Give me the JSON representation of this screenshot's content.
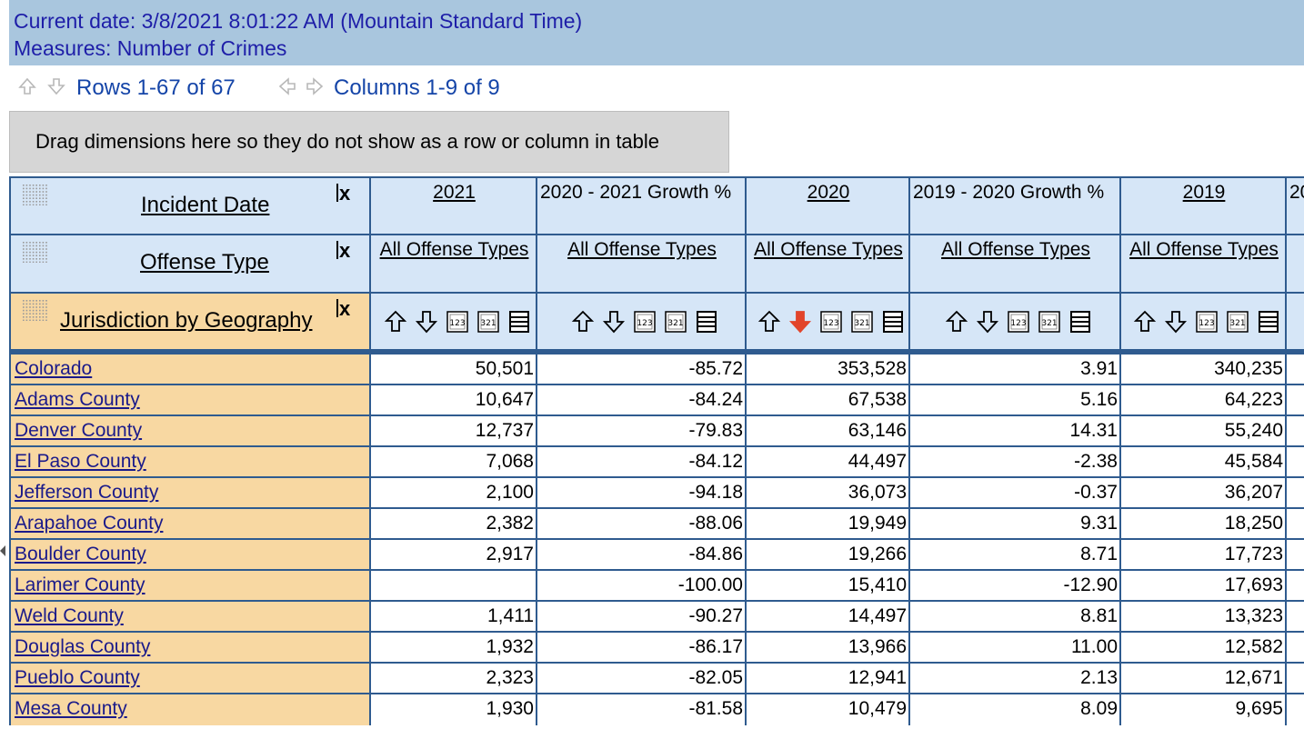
{
  "header": {
    "current_date": "Current date: 3/8/2021 8:01:22 AM (Mountain Standard Time)",
    "measures": "Measures: Number of Crimes"
  },
  "nav": {
    "rows_text": "Rows 1-67 of 67",
    "columns_text": "Columns 1-9 of 9",
    "icons": [
      "arrow-up-icon",
      "arrow-down-icon",
      "arrow-left-icon",
      "arrow-right-icon"
    ]
  },
  "drag_zone": {
    "text": "Drag dimensions here so they do not show as a row or column in table"
  },
  "dimensions": {
    "incident_date": "Incident Date",
    "offense_type": "Offense Type",
    "jurisdiction": "Jurisdiction by Geography",
    "remove_label": "x"
  },
  "columns": [
    {
      "header": "2021",
      "offense": "All Offense Types",
      "kind": "year"
    },
    {
      "header": "2020 - 2021 Growth %",
      "offense": "All Offense Types",
      "kind": "growth"
    },
    {
      "header": "2020",
      "offense": "All Offense Types",
      "kind": "year"
    },
    {
      "header": "2019 - 2020 Growth %",
      "offense": "All Offense Types",
      "kind": "growth"
    },
    {
      "header": "2019",
      "offense": "All Offense Types",
      "kind": "year"
    },
    {
      "header": "20",
      "offense": "",
      "kind": "year"
    }
  ],
  "sort_icons": [
    "sort-ascending-icon",
    "sort-descending-icon",
    "rank-ascending-icon",
    "rank-descending-icon",
    "list-icon"
  ],
  "active_sort_color": "#e2442a",
  "rows": [
    {
      "name": "Colorado",
      "values": [
        "50,501",
        "-85.72",
        "353,528",
        "3.91",
        "340,235"
      ]
    },
    {
      "name": "Adams County",
      "values": [
        "10,647",
        "-84.24",
        "67,538",
        "5.16",
        "64,223"
      ]
    },
    {
      "name": "Denver County",
      "values": [
        "12,737",
        "-79.83",
        "63,146",
        "14.31",
        "55,240"
      ]
    },
    {
      "name": "El Paso County",
      "values": [
        "7,068",
        "-84.12",
        "44,497",
        "-2.38",
        "45,584"
      ]
    },
    {
      "name": "Jefferson County",
      "values": [
        "2,100",
        "-94.18",
        "36,073",
        "-0.37",
        "36,207"
      ]
    },
    {
      "name": "Arapahoe County",
      "values": [
        "2,382",
        "-88.06",
        "19,949",
        "9.31",
        "18,250"
      ]
    },
    {
      "name": "Boulder County",
      "values": [
        "2,917",
        "-84.86",
        "19,266",
        "8.71",
        "17,723"
      ]
    },
    {
      "name": "Larimer County",
      "values": [
        "",
        "-100.00",
        "15,410",
        "-12.90",
        "17,693"
      ]
    },
    {
      "name": "Weld County",
      "values": [
        "1,411",
        "-90.27",
        "14,497",
        "8.81",
        "13,323"
      ]
    },
    {
      "name": "Douglas County",
      "values": [
        "1,932",
        "-86.17",
        "13,966",
        "11.00",
        "12,582"
      ]
    },
    {
      "name": "Pueblo County",
      "values": [
        "2,323",
        "-82.05",
        "12,941",
        "2.13",
        "12,671"
      ]
    },
    {
      "name": "Mesa County",
      "values": [
        "1,930",
        "-81.58",
        "10,479",
        "8.09",
        "9,695"
      ]
    }
  ]
}
